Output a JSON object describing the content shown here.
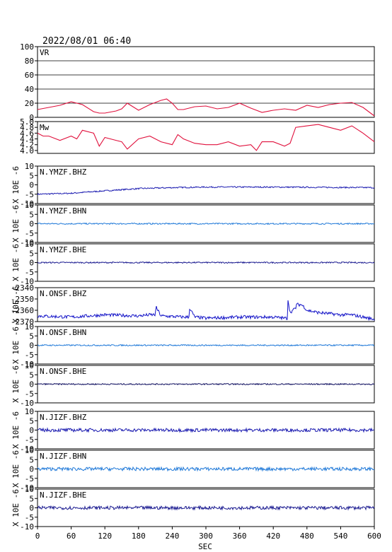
{
  "header": {
    "timestamp": "2022/08/01 06:40"
  },
  "x_axis": {
    "label": "SEC",
    "ticks": [
      "0",
      "60",
      "120",
      "180",
      "240",
      "300",
      "360",
      "420",
      "480",
      "540",
      "600"
    ]
  },
  "y_unit_label": "X 10E -6",
  "chart_data": [
    {
      "type": "line",
      "title": "VR",
      "ylim": [
        0,
        100
      ],
      "yticks": [
        "0",
        "20",
        "40",
        "60",
        "80",
        "100"
      ],
      "grid": true,
      "color": "#e0103c",
      "x": [
        0,
        20,
        40,
        60,
        80,
        100,
        110,
        120,
        140,
        150,
        160,
        180,
        200,
        220,
        230,
        240,
        250,
        260,
        280,
        300,
        320,
        340,
        360,
        380,
        400,
        420,
        440,
        460,
        480,
        500,
        520,
        540,
        560,
        580,
        600
      ],
      "values": [
        11,
        14,
        17,
        22,
        18,
        8,
        6,
        6,
        9,
        12,
        20,
        10,
        18,
        24,
        26,
        20,
        11,
        11,
        15,
        16,
        12,
        14,
        20,
        13,
        7,
        10,
        12,
        10,
        17,
        14,
        18,
        20,
        21,
        14,
        2
      ]
    },
    {
      "type": "line",
      "title": "Mw",
      "ylim": [
        3.9,
        5.0
      ],
      "yticks": [
        "4.0",
        "4.2",
        "4.4",
        "4.6",
        "4.8",
        "5.0"
      ],
      "grid": false,
      "color": "#e0103c",
      "x": [
        0,
        10,
        20,
        40,
        60,
        70,
        80,
        100,
        110,
        120,
        140,
        150,
        160,
        180,
        200,
        220,
        240,
        250,
        260,
        280,
        300,
        320,
        340,
        360,
        380,
        390,
        400,
        420,
        440,
        450,
        460,
        480,
        500,
        520,
        540,
        560,
        580,
        600
      ],
      "values": [
        4.6,
        4.5,
        4.5,
        4.35,
        4.5,
        4.4,
        4.7,
        4.6,
        4.15,
        4.45,
        4.35,
        4.3,
        4.05,
        4.4,
        4.5,
        4.3,
        4.2,
        4.55,
        4.4,
        4.25,
        4.2,
        4.2,
        4.3,
        4.15,
        4.2,
        4.0,
        4.3,
        4.3,
        4.15,
        4.25,
        4.8,
        4.85,
        4.9,
        4.8,
        4.7,
        4.85,
        4.6,
        4.3
      ]
    },
    {
      "type": "line",
      "title": "N.YMZF.BHZ",
      "ylim": [
        -10,
        10
      ],
      "yticks": [
        "-10",
        "-5",
        "0",
        "5",
        "10"
      ],
      "color": "#1a1ab0",
      "x": [
        0,
        60,
        120,
        180,
        240,
        300,
        360,
        420,
        480,
        540,
        600
      ],
      "values": [
        -5,
        -4.5,
        -3.2,
        -2,
        -1.5,
        -1.2,
        -1.2,
        -1.2,
        -1.3,
        -1.4,
        -1.5
      ]
    },
    {
      "type": "line",
      "title": "N.YMZF.BHN",
      "ylim": [
        -10,
        10
      ],
      "yticks": [
        "-10",
        "-5",
        "0",
        "5",
        "10"
      ],
      "color": "#1e78d8",
      "x": [
        0,
        600
      ],
      "values": [
        0,
        0
      ]
    },
    {
      "type": "line",
      "title": "N.YMZF.BHE",
      "ylim": [
        -10,
        10
      ],
      "yticks": [
        "-10",
        "-5",
        "0",
        "5",
        "10"
      ],
      "color": "#1a1a90",
      "x": [
        0,
        600
      ],
      "values": [
        0,
        0
      ]
    },
    {
      "type": "line",
      "title": "N.ONSF.BHZ",
      "ylim": [
        -2370,
        -2340
      ],
      "yticks": [
        "-2370",
        "-2360",
        "-2350",
        "-2340"
      ],
      "color": "#1414c8",
      "x": [
        0,
        60,
        120,
        180,
        200,
        210,
        211,
        220,
        260,
        270,
        271,
        280,
        300,
        360,
        420,
        440,
        445,
        446,
        450,
        460,
        461,
        470,
        475,
        480,
        500,
        540,
        560,
        580,
        600
      ],
      "values": [
        -2365,
        -2366,
        -2364,
        -2365,
        -2364,
        -2364,
        -2357,
        -2365,
        -2366,
        -2366,
        -2358,
        -2366,
        -2367,
        -2366,
        -2366,
        -2367,
        -2367,
        -2350,
        -2362,
        -2358,
        -2355,
        -2355,
        -2357,
        -2360,
        -2362,
        -2364,
        -2364,
        -2366,
        -2368
      ]
    },
    {
      "type": "line",
      "title": "N.ONSF.BHN",
      "ylim": [
        -10,
        10
      ],
      "yticks": [
        "-10",
        "-5",
        "0",
        "5",
        "10"
      ],
      "color": "#1e78d8",
      "x": [
        0,
        600
      ],
      "values": [
        0,
        0
      ]
    },
    {
      "type": "line",
      "title": "N.ONSF.BHE",
      "ylim": [
        -10,
        10
      ],
      "yticks": [
        "-10",
        "-5",
        "0",
        "5",
        "10"
      ],
      "color": "#101060",
      "x": [
        0,
        600
      ],
      "values": [
        0,
        0
      ]
    },
    {
      "type": "line",
      "title": "N.JIZF.BHZ",
      "ylim": [
        -10,
        10
      ],
      "yticks": [
        "-10",
        "-5",
        "0",
        "5",
        "10"
      ],
      "color": "#1a1ab0",
      "x": [
        0,
        600
      ],
      "values": [
        0,
        0
      ]
    },
    {
      "type": "line",
      "title": "N.JIZF.BHN",
      "ylim": [
        -10,
        10
      ],
      "yticks": [
        "-10",
        "-5",
        "0",
        "5",
        "10"
      ],
      "color": "#1e78d8",
      "x": [
        0,
        600
      ],
      "values": [
        0,
        0
      ]
    },
    {
      "type": "line",
      "title": "N.JIZF.BHE",
      "ylim": [
        -10,
        10
      ],
      "yticks": [
        "-10",
        "-5",
        "0",
        "5",
        "10"
      ],
      "color": "#1a1a90",
      "x": [
        0,
        600
      ],
      "values": [
        0,
        0
      ]
    }
  ]
}
